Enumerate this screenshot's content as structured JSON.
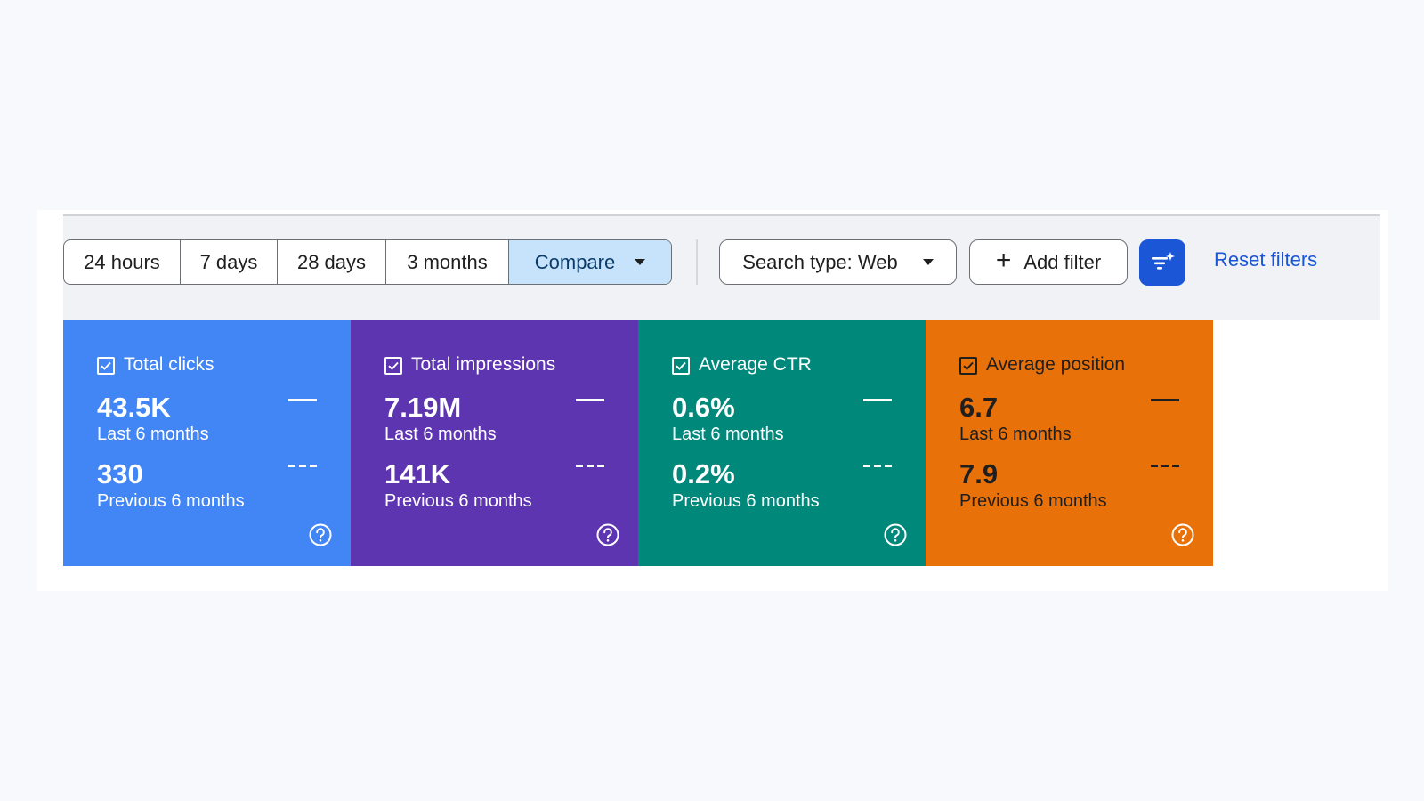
{
  "toolbar": {
    "ranges": [
      "24 hours",
      "7 days",
      "28 days",
      "3 months"
    ],
    "compare_label": "Compare",
    "search_type_label": "Search type: Web",
    "add_filter_label": "Add filter",
    "reset_label": "Reset filters"
  },
  "cards": [
    {
      "label": "Total clicks",
      "current": "43.5K",
      "current_period": "Last 6 months",
      "previous": "330",
      "previous_period": "Previous 6 months",
      "color": "#4285f4",
      "checked": true
    },
    {
      "label": "Total impressions",
      "current": "7.19M",
      "current_period": "Last 6 months",
      "previous": "141K",
      "previous_period": "Previous 6 months",
      "color": "#5e35b1",
      "checked": true
    },
    {
      "label": "Average CTR",
      "current": "0.6%",
      "current_period": "Last 6 months",
      "previous": "0.2%",
      "previous_period": "Previous 6 months",
      "color": "#00897b",
      "checked": true
    },
    {
      "label": "Average position",
      "current": "6.7",
      "current_period": "Last 6 months",
      "previous": "7.9",
      "previous_period": "Previous 6 months",
      "color": "#e8710a",
      "checked": true
    }
  ],
  "colors": {
    "accent": "#1a56d6",
    "compare_bg": "#c6e3fb"
  },
  "icons": {
    "compare": "chevron-down-icon",
    "search_type": "chevron-down-icon",
    "add_filter": "plus-icon",
    "ai_button": "filter-sparkle-icon",
    "card_check": "checkbox-checked-icon",
    "card_help": "help-circle-icon"
  }
}
